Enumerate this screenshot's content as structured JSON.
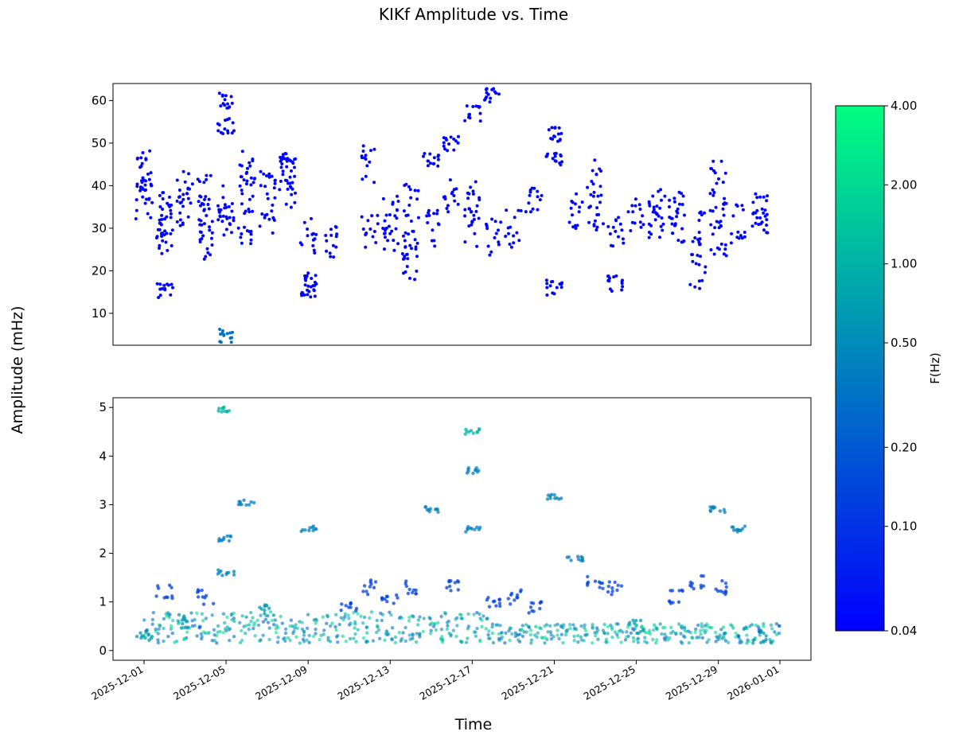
{
  "title": "KIKf Amplitude vs. Time",
  "ylabel": "Amplitude (mHz)",
  "xlabel": "Time",
  "colorbar": {
    "label": "F(Hz)",
    "ticks": [
      "4.00",
      "2.00",
      "1.00",
      "0.50",
      "0.20",
      "0.10",
      "0.04"
    ],
    "colors": [
      "#0000ff",
      "#00ff80"
    ]
  },
  "chart_data": [
    {
      "type": "scatter",
      "xlabel": "Time",
      "x_range": [
        "2025-11-30",
        "2026-01-01"
      ],
      "ylim": [
        2.5,
        64
      ],
      "yticks": [
        "10",
        "20",
        "30",
        "40",
        "50",
        "60"
      ],
      "x_ticks": [
        "2025-12-01",
        "2025-12-05",
        "2025-12-09",
        "2025-12-13",
        "2025-12-17",
        "2025-12-21",
        "2025-12-25",
        "2025-12-29",
        "2026-01-01"
      ],
      "series": [
        {
          "points": [
            [
              "2025-12-01",
              40.0
            ],
            [
              "2025-12-01",
              44.0
            ],
            [
              "2025-12-01",
              36.0
            ],
            [
              "2025-12-02",
              31.0
            ],
            [
              "2025-12-02",
              34.0
            ],
            [
              "2025-12-02",
              26.0
            ],
            [
              "2025-12-02",
              15.5
            ],
            [
              "2025-12-03",
              35.0
            ],
            [
              "2025-12-03",
              40.0
            ],
            [
              "2025-12-04",
              32.0
            ],
            [
              "2025-12-04",
              38.0
            ],
            [
              "2025-12-04",
              27.0
            ],
            [
              "2025-12-05",
              60.0
            ],
            [
              "2025-12-05",
              54.0
            ],
            [
              "2025-12-05",
              36.0
            ],
            [
              "2025-12-05",
              32.0
            ],
            [
              "2025-12-05",
              5.0
            ],
            [
              "2025-12-06",
              38.0
            ],
            [
              "2025-12-06",
              44.0
            ],
            [
              "2025-12-06",
              30.0
            ],
            [
              "2025-12-07",
              33.0
            ],
            [
              "2025-12-07",
              40.0
            ],
            [
              "2025-12-08",
              39.0
            ],
            [
              "2025-12-08",
              46.0
            ],
            [
              "2025-12-08",
              42.0
            ],
            [
              "2025-12-09",
              28.0
            ],
            [
              "2025-12-09",
              18.0
            ],
            [
              "2025-12-09",
              15.0
            ],
            [
              "2025-12-10",
              27.0
            ],
            [
              "2025-12-12",
              30.0
            ],
            [
              "2025-12-12",
              45.0
            ],
            [
              "2025-12-13",
              33.0
            ],
            [
              "2025-12-13",
              29.0
            ],
            [
              "2025-12-14",
              36.0
            ],
            [
              "2025-12-14",
              27.0
            ],
            [
              "2025-12-14",
              22.0
            ],
            [
              "2025-12-15",
              30.0
            ],
            [
              "2025-12-15",
              46.0
            ],
            [
              "2025-12-16",
              38.0
            ],
            [
              "2025-12-16",
              50.0
            ],
            [
              "2025-12-17",
              57.0
            ],
            [
              "2025-12-17",
              38.0
            ],
            [
              "2025-12-17",
              30.0
            ],
            [
              "2025-12-18",
              61.0
            ],
            [
              "2025-12-18",
              28.0
            ],
            [
              "2025-12-19",
              30.0
            ],
            [
              "2025-12-20",
              38.0
            ],
            [
              "2025-12-21",
              52.0
            ],
            [
              "2025-12-21",
              46.0
            ],
            [
              "2025-12-21",
              16.0
            ],
            [
              "2025-12-22",
              34.0
            ],
            [
              "2025-12-23",
              42.0
            ],
            [
              "2025-12-23",
              33.0
            ],
            [
              "2025-12-24",
              30.0
            ],
            [
              "2025-12-24",
              17.0
            ],
            [
              "2025-12-25",
              33.0
            ],
            [
              "2025-12-26",
              36.0
            ],
            [
              "2025-12-26",
              31.0
            ],
            [
              "2025-12-27",
              34.0
            ],
            [
              "2025-12-27",
              31.0
            ],
            [
              "2025-12-28",
              30.0
            ],
            [
              "2025-12-28",
              20.0
            ],
            [
              "2025-12-29",
              33.0
            ],
            [
              "2025-12-29",
              42.0
            ],
            [
              "2025-12-29",
              27.0
            ],
            [
              "2025-12-30",
              31.0
            ],
            [
              "2025-12-31",
              33.0
            ],
            [
              "2025-12-31",
              35.0
            ]
          ]
        }
      ]
    },
    {
      "type": "scatter",
      "xlabel": "Time",
      "x_range": [
        "2025-11-30",
        "2026-01-01"
      ],
      "ylim": [
        -0.2,
        5.2
      ],
      "yticks": [
        "0",
        "1",
        "2",
        "3",
        "4",
        "5"
      ],
      "x_ticks": [
        "2025-12-01",
        "2025-12-05",
        "2025-12-09",
        "2025-12-13",
        "2025-12-17",
        "2025-12-21",
        "2025-12-25",
        "2025-12-29",
        "2026-01-01"
      ],
      "series": [
        {
          "points": [
            [
              "2025-12-01",
              0.3
            ],
            [
              "2025-12-02",
              1.2
            ],
            [
              "2025-12-03",
              0.6
            ],
            [
              "2025-12-04",
              1.1
            ],
            [
              "2025-12-05",
              4.95
            ],
            [
              "2025-12-05",
              2.3
            ],
            [
              "2025-12-05",
              1.6
            ],
            [
              "2025-12-06",
              3.05
            ],
            [
              "2025-12-07",
              0.8
            ],
            [
              "2025-12-09",
              2.5
            ],
            [
              "2025-12-11",
              0.9
            ],
            [
              "2025-12-12",
              1.3
            ],
            [
              "2025-12-13",
              1.1
            ],
            [
              "2025-12-14",
              1.3
            ],
            [
              "2025-12-15",
              2.9
            ],
            [
              "2025-12-16",
              1.3
            ],
            [
              "2025-12-17",
              4.5
            ],
            [
              "2025-12-17",
              3.7
            ],
            [
              "2025-12-17",
              2.5
            ],
            [
              "2025-12-18",
              1.0
            ],
            [
              "2025-12-19",
              1.1
            ],
            [
              "2025-12-20",
              0.9
            ],
            [
              "2025-12-21",
              3.15
            ],
            [
              "2025-12-22",
              1.9
            ],
            [
              "2025-12-23",
              1.4
            ],
            [
              "2025-12-24",
              1.3
            ],
            [
              "2025-12-25",
              0.5
            ],
            [
              "2025-12-27",
              1.1
            ],
            [
              "2025-12-28",
              1.4
            ],
            [
              "2025-12-29",
              2.9
            ],
            [
              "2025-12-29",
              1.3
            ],
            [
              "2025-12-30",
              2.5
            ],
            [
              "2025-12-31",
              0.3
            ]
          ]
        }
      ]
    }
  ]
}
